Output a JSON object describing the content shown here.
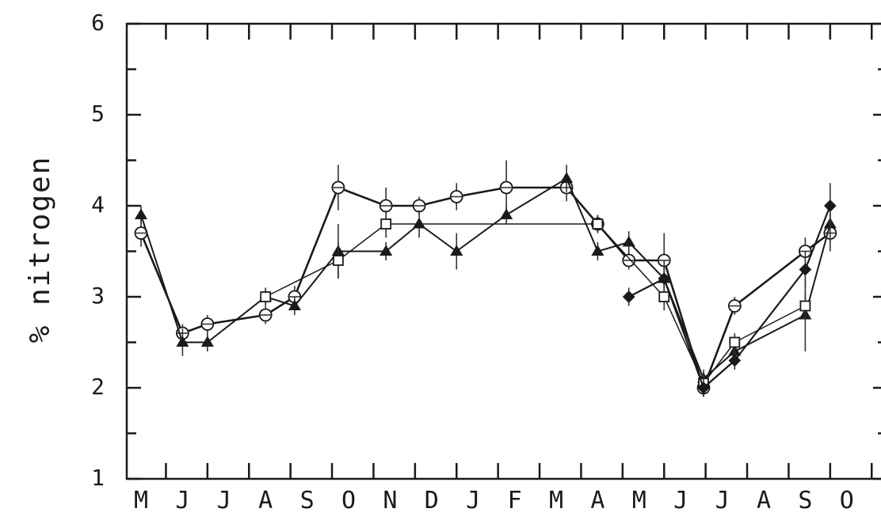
{
  "chart_data": {
    "type": "line",
    "title": "",
    "xlabel": "",
    "ylabel": "% nitrogen",
    "ylim": [
      1,
      6
    ],
    "yticks": [
      1,
      2,
      3,
      4,
      5,
      6
    ],
    "x_tick_labels": [
      "M",
      "J",
      "J",
      "A",
      "S",
      "O",
      "N",
      "D",
      "J",
      "F",
      "M",
      "A",
      "M",
      "J",
      "J",
      "A",
      "S",
      "O"
    ],
    "grid": false,
    "legend": "none",
    "series": [
      {
        "marker": "circle",
        "points": [
          {
            "x": 0.0,
            "y": 3.7,
            "err": 0.15
          },
          {
            "x": 1.0,
            "y": 2.6,
            "err": 0.1
          },
          {
            "x": 1.6,
            "y": 2.7,
            "err": 0.1
          },
          {
            "x": 3.0,
            "y": 2.8,
            "err": 0.1
          },
          {
            "x": 3.7,
            "y": 3.0,
            "err": 0.12
          },
          {
            "x": 4.75,
            "y": 4.2,
            "err": 0.25
          },
          {
            "x": 5.9,
            "y": 4.0,
            "err": 0.2
          },
          {
            "x": 6.7,
            "y": 4.0,
            "err": 0.1
          },
          {
            "x": 7.6,
            "y": 4.1,
            "err": 0.15
          },
          {
            "x": 8.8,
            "y": 4.2,
            "err": 0.3
          },
          {
            "x": 10.25,
            "y": 4.2,
            "err": 0.15
          },
          {
            "x": 11.0,
            "y": 3.8,
            "err": 0.1
          },
          {
            "x": 11.75,
            "y": 3.4,
            "err": 0.1
          },
          {
            "x": 12.6,
            "y": 3.4,
            "err": 0.3
          },
          {
            "x": 13.55,
            "y": 2.0,
            "err": 0.1
          },
          {
            "x": 14.3,
            "y": 2.9,
            "err": 0.1
          },
          {
            "x": 16.0,
            "y": 3.5,
            "err": 0.15
          },
          {
            "x": 16.6,
            "y": 3.7,
            "err": 0.2
          }
        ]
      },
      {
        "marker": "triangle",
        "points": [
          {
            "x": 0.0,
            "y": 3.9,
            "err": 0.1
          },
          {
            "x": 1.0,
            "y": 2.5,
            "err": 0.15
          },
          {
            "x": 1.6,
            "y": 2.5,
            "err": 0.1
          },
          {
            "x": 3.0,
            "y": 3.0,
            "err": 0.1
          },
          {
            "x": 3.7,
            "y": 2.9,
            "err": 0.1
          },
          {
            "x": 4.75,
            "y": 3.5,
            "err": 0.3
          },
          {
            "x": 5.9,
            "y": 3.5,
            "err": 0.1
          },
          {
            "x": 6.7,
            "y": 3.8,
            "err": 0.15
          },
          {
            "x": 7.6,
            "y": 3.5,
            "err": 0.2
          },
          {
            "x": 8.8,
            "y": 3.9,
            "err": 0.1
          },
          {
            "x": 10.25,
            "y": 4.3,
            "err": 0.15
          },
          {
            "x": 11.0,
            "y": 3.5,
            "err": 0.1
          },
          {
            "x": 11.75,
            "y": 3.6,
            "err": 0.12
          },
          {
            "x": 12.6,
            "y": 3.2,
            "err": 0.2
          },
          {
            "x": 13.55,
            "y": 2.1,
            "err": 0.1
          },
          {
            "x": 14.3,
            "y": 2.4,
            "err": 0.1
          },
          {
            "x": 16.0,
            "y": 2.8,
            "err": 0.4
          },
          {
            "x": 16.6,
            "y": 3.8,
            "err": 0.2
          }
        ]
      },
      {
        "marker": "square",
        "points": [
          {
            "x": 3.0,
            "y": 3.0,
            "err": 0.1
          },
          {
            "x": 4.75,
            "y": 3.4,
            "err": 0.2
          },
          {
            "x": 5.9,
            "y": 3.8,
            "err": 0.15
          },
          {
            "x": 11.0,
            "y": 3.8,
            "err": 0.1
          },
          {
            "x": 12.6,
            "y": 3.0,
            "err": 0.15
          },
          {
            "x": 13.55,
            "y": 2.05,
            "err": 0.1
          },
          {
            "x": 14.3,
            "y": 2.5,
            "err": 0.1
          },
          {
            "x": 16.0,
            "y": 2.9,
            "err": 0.15
          }
        ]
      },
      {
        "marker": "diamond",
        "points": [
          {
            "x": 11.75,
            "y": 3.0,
            "err": 0.1
          },
          {
            "x": 12.6,
            "y": 3.2,
            "err": 0.15
          },
          {
            "x": 13.55,
            "y": 2.0,
            "err": 0.1
          },
          {
            "x": 14.3,
            "y": 2.3,
            "err": 0.1
          },
          {
            "x": 16.0,
            "y": 3.3,
            "err": 0.2
          },
          {
            "x": 16.6,
            "y": 4.0,
            "err": 0.25
          }
        ]
      }
    ]
  }
}
